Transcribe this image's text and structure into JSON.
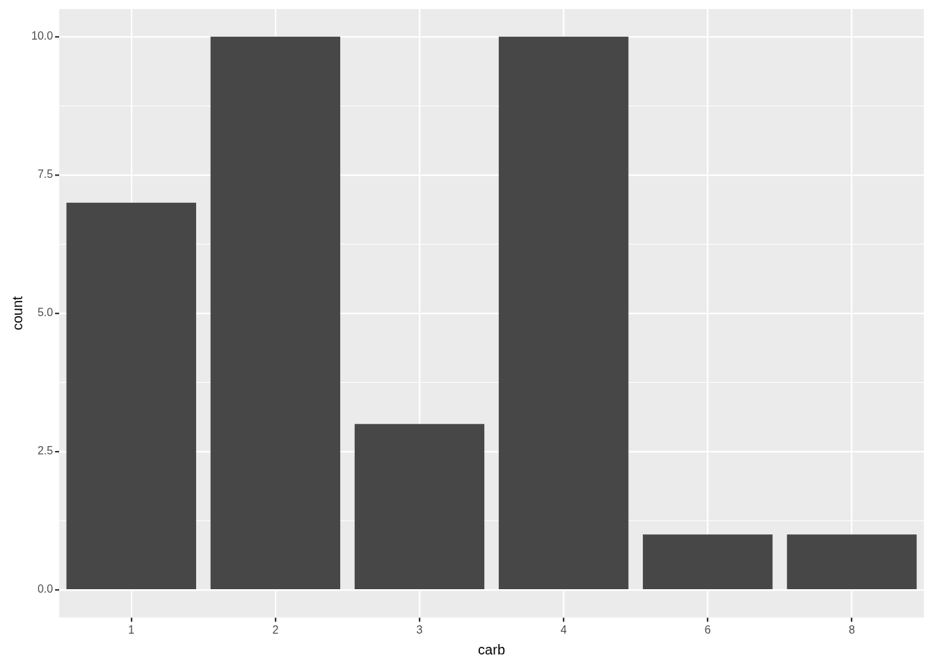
{
  "chart_data": {
    "type": "bar",
    "xlabel": "carb",
    "ylabel": "count",
    "categories": [
      "1",
      "2",
      "3",
      "4",
      "6",
      "8"
    ],
    "values": [
      7,
      10,
      3,
      10,
      1,
      1
    ],
    "color": "#474747",
    "ylim": [
      -0.5,
      10.5
    ],
    "yticks": [
      {
        "value": 0,
        "label": "0.0"
      },
      {
        "value": 1.25,
        "label": null
      },
      {
        "value": 2.5,
        "label": "2.5"
      },
      {
        "value": 3.75,
        "label": null
      },
      {
        "value": 5,
        "label": "5.0"
      },
      {
        "value": 6.25,
        "label": null
      },
      {
        "value": 7.5,
        "label": "7.5"
      },
      {
        "value": 8.75,
        "label": null
      },
      {
        "value": 10,
        "label": "10.0"
      }
    ],
    "grid": true,
    "legend": false
  }
}
